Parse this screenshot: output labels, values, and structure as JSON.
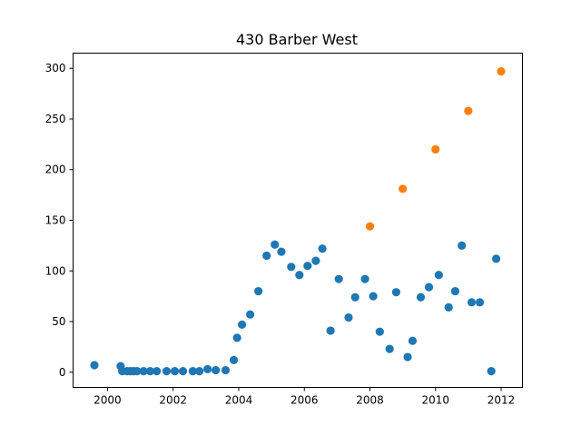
{
  "chart_data": {
    "type": "scatter",
    "title": "430 Barber West",
    "xlabel": "",
    "ylabel": "",
    "xlim": [
      1998.95,
      2012.65
    ],
    "ylim": [
      -15,
      315
    ],
    "xticks": [
      2000,
      2002,
      2004,
      2006,
      2008,
      2010,
      2012
    ],
    "yticks": [
      0,
      50,
      100,
      150,
      200,
      250,
      300
    ],
    "grid": false,
    "legend": "none",
    "series": [
      {
        "color": "#1f77b4",
        "points": [
          [
            1999.6,
            7
          ],
          [
            2000.4,
            6
          ],
          [
            2000.45,
            1
          ],
          [
            2000.6,
            1
          ],
          [
            2000.7,
            1
          ],
          [
            2000.8,
            1
          ],
          [
            2000.9,
            1
          ],
          [
            2001.1,
            1
          ],
          [
            2001.3,
            1
          ],
          [
            2001.5,
            1
          ],
          [
            2001.8,
            1
          ],
          [
            2002.05,
            1
          ],
          [
            2002.3,
            1
          ],
          [
            2002.6,
            1
          ],
          [
            2002.8,
            1
          ],
          [
            2003.05,
            3
          ],
          [
            2003.3,
            2
          ],
          [
            2003.6,
            2
          ],
          [
            2003.85,
            12
          ],
          [
            2003.95,
            34
          ],
          [
            2004.1,
            47
          ],
          [
            2004.35,
            57
          ],
          [
            2004.6,
            80
          ],
          [
            2004.85,
            115
          ],
          [
            2005.1,
            126
          ],
          [
            2005.3,
            119
          ],
          [
            2005.6,
            104
          ],
          [
            2005.85,
            96
          ],
          [
            2006.1,
            105
          ],
          [
            2006.35,
            110
          ],
          [
            2006.55,
            122
          ],
          [
            2006.8,
            41
          ],
          [
            2007.05,
            92
          ],
          [
            2007.35,
            54
          ],
          [
            2007.55,
            74
          ],
          [
            2007.85,
            92
          ],
          [
            2008.1,
            75
          ],
          [
            2008.3,
            40
          ],
          [
            2008.6,
            23
          ],
          [
            2008.8,
            79
          ],
          [
            2009.15,
            15
          ],
          [
            2009.3,
            31
          ],
          [
            2009.55,
            74
          ],
          [
            2009.8,
            84
          ],
          [
            2010.1,
            96
          ],
          [
            2010.4,
            64
          ],
          [
            2010.6,
            80
          ],
          [
            2010.8,
            125
          ],
          [
            2011.1,
            69
          ],
          [
            2011.35,
            69
          ],
          [
            2011.7,
            1
          ],
          [
            2011.85,
            112
          ]
        ]
      },
      {
        "color": "#ff7f0e",
        "points": [
          [
            2008.0,
            144
          ],
          [
            2009.0,
            181
          ],
          [
            2010.0,
            220
          ],
          [
            2011.0,
            258
          ],
          [
            2012.0,
            297
          ]
        ]
      }
    ]
  }
}
